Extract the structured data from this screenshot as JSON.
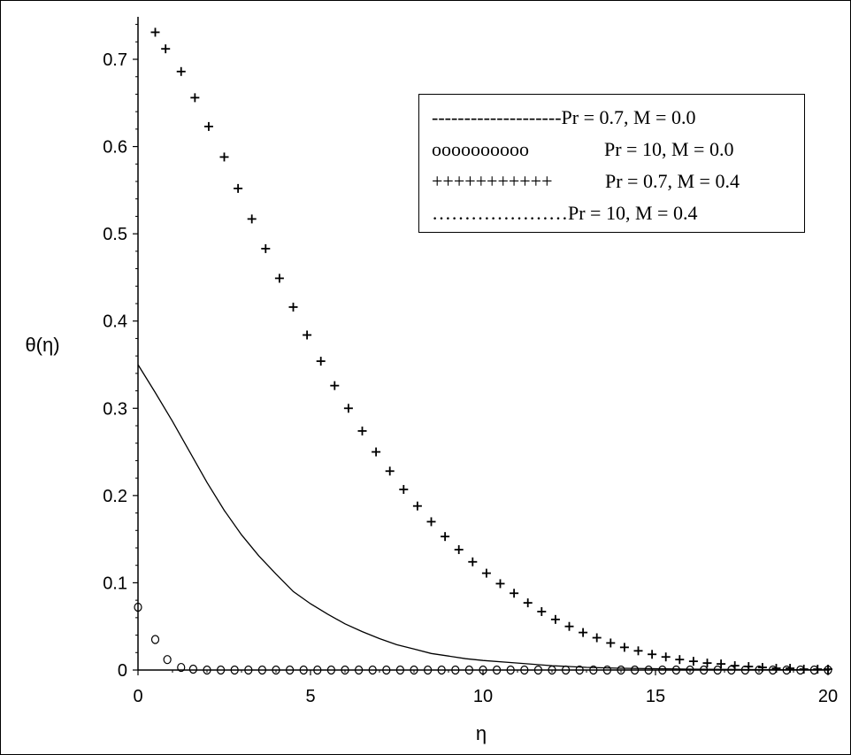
{
  "chart_data": {
    "type": "scatter",
    "title": "",
    "xlabel": "η",
    "ylabel": "θ(η)",
    "xlim": [
      0,
      20
    ],
    "ylim": [
      0,
      0.75
    ],
    "x_ticks": [
      0,
      5,
      10,
      15,
      20
    ],
    "y_ticks": [
      0,
      0.1,
      0.2,
      0.3,
      0.4,
      0.5,
      0.6,
      0.7
    ],
    "x_tick_labels": [
      "0",
      "5",
      "10",
      "15",
      "20"
    ],
    "y_tick_labels": [
      "0",
      "0.1",
      "0.2",
      "0.3",
      "0.4",
      "0.5",
      "0.6",
      "0.7"
    ],
    "grid": false,
    "legend_position": "top-right",
    "series": [
      {
        "name": "Pr = 0.7, M = 0.0",
        "style": "line",
        "x": [
          0,
          0.5,
          1,
          1.5,
          2,
          2.5,
          3,
          3.5,
          4,
          4.5,
          5,
          5.5,
          6,
          6.5,
          7,
          7.5,
          8,
          8.5,
          9,
          9.5,
          10,
          11,
          12,
          13,
          14,
          15,
          16,
          17,
          18,
          19,
          20
        ],
        "y": [
          0.35,
          0.318,
          0.285,
          0.25,
          0.215,
          0.183,
          0.155,
          0.131,
          0.11,
          0.09,
          0.076,
          0.064,
          0.053,
          0.044,
          0.036,
          0.029,
          0.024,
          0.019,
          0.016,
          0.013,
          0.011,
          0.008,
          0.005,
          0.003,
          0.002,
          0.0015,
          0.001,
          0.0007,
          0.0005,
          0.0003,
          0.0002
        ]
      },
      {
        "name": "Pr = 10, M = 0.0",
        "style": "circle",
        "x": [
          0,
          0.5,
          0.85,
          1.25,
          1.6,
          2.0,
          2.4,
          2.8,
          3.2,
          3.6,
          4.0,
          4.4,
          4.8,
          5.2,
          5.6,
          6.0,
          6.4,
          6.8,
          7.2,
          7.6,
          8.0,
          8.4,
          8.8,
          9.2,
          9.6,
          10.0,
          10.4,
          10.8,
          11.2,
          11.6,
          12.0,
          12.4,
          12.8,
          13.2,
          13.6,
          14.0,
          14.4,
          14.8,
          15.2,
          15.6,
          16.0,
          16.4,
          16.8,
          17.2,
          17.6,
          18.0,
          18.4,
          18.8,
          19.2,
          19.6,
          20.0
        ],
        "y": [
          0.072,
          0.035,
          0.012,
          0.003,
          0.001,
          0,
          0,
          0,
          0,
          0,
          0,
          0,
          0,
          0,
          0,
          0,
          0,
          0,
          0,
          0,
          0,
          0,
          0,
          0,
          0,
          0,
          0,
          0,
          0,
          0,
          0,
          0,
          0,
          0,
          0,
          0,
          0,
          0,
          0,
          0,
          0,
          0,
          0,
          0,
          0,
          0,
          0,
          0,
          0,
          0,
          0
        ]
      },
      {
        "name": "Pr = 0.7, M = 0.4",
        "style": "plus",
        "x": [
          0.5,
          0.8,
          1.25,
          1.65,
          2.05,
          2.5,
          2.9,
          3.3,
          3.7,
          4.1,
          4.5,
          4.9,
          5.3,
          5.7,
          6.1,
          6.5,
          6.9,
          7.3,
          7.7,
          8.1,
          8.5,
          8.9,
          9.3,
          9.7,
          10.1,
          10.5,
          10.9,
          11.3,
          11.7,
          12.1,
          12.5,
          12.9,
          13.3,
          13.7,
          14.1,
          14.5,
          14.9,
          15.3,
          15.7,
          16.1,
          16.5,
          16.9,
          17.3,
          17.7,
          18.1,
          18.5,
          18.9,
          19.3,
          19.7,
          20.0
        ],
        "y": [
          0.731,
          0.712,
          0.686,
          0.656,
          0.623,
          0.588,
          0.552,
          0.517,
          0.483,
          0.449,
          0.416,
          0.384,
          0.354,
          0.326,
          0.3,
          0.274,
          0.25,
          0.228,
          0.207,
          0.188,
          0.17,
          0.153,
          0.138,
          0.124,
          0.111,
          0.099,
          0.088,
          0.077,
          0.067,
          0.058,
          0.05,
          0.043,
          0.037,
          0.031,
          0.026,
          0.022,
          0.018,
          0.015,
          0.012,
          0.01,
          0.008,
          0.007,
          0.005,
          0.004,
          0.003,
          0.002,
          0.002,
          0.001,
          0.001,
          0.001
        ]
      }
    ],
    "legend": [
      {
        "symbol": "--------------------",
        "label": "Pr = 0.7, M = 0.0"
      },
      {
        "symbol": "oooooooooo",
        "label": "Pr = 10, M = 0.0"
      },
      {
        "symbol": "+++++++++++",
        "label": "Pr = 0.7, M = 0.4"
      },
      {
        "symbol": "…………………",
        "label": "Pr = 10, M = 0.4"
      }
    ]
  }
}
